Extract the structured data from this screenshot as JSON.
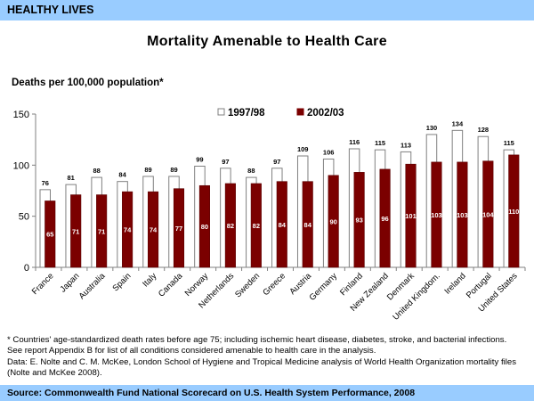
{
  "header": {
    "section": "HEALTHY LIVES"
  },
  "footer": {
    "source": "Source: Commonwealth Fund National Scorecard on U.S. Health System Performance, 2008"
  },
  "notes": [
    "* Countries' age-standardized death rates before age 75; including ischemic heart disease, diabetes, stroke, and bacterial infections.",
    "See report Appendix B for list of all conditions considered amenable to health care in the analysis.",
    "Data: E. Nolte and C. M. McKee, London School of Hygiene and Tropical Medicine analysis of World Health Organization mortality files (Nolte and McKee 2008)."
  ],
  "chart_data": {
    "type": "bar",
    "title": "Mortality Amenable to Health Care",
    "xlabel": "",
    "ylabel": "Deaths per 100,000 population*",
    "ylim": [
      0,
      150
    ],
    "yticks": [
      0,
      50,
      100,
      150
    ],
    "grid": false,
    "legend": "top-center",
    "categories": [
      "France",
      "Japan",
      "Australia",
      "Spain",
      "Italy",
      "Canada",
      "Norway",
      "Netherlands",
      "Sweden",
      "Greece",
      "Austria",
      "Germany",
      "Finland",
      "New Zealand",
      "Denmark",
      "United Kingdom",
      "Ireland",
      "Portugal",
      "United States"
    ],
    "series": [
      {
        "name": "1997/98",
        "color": "#ffffff",
        "stroke": "#808080",
        "values": [
          76,
          81,
          88,
          84,
          89,
          89,
          99,
          97,
          88,
          97,
          109,
          106,
          116,
          115,
          113,
          130,
          134,
          128,
          115
        ]
      },
      {
        "name": "2002/03",
        "color": "#7b0000",
        "stroke": "#7b0000",
        "values": [
          65,
          71,
          71,
          74,
          74,
          77,
          80,
          82,
          82,
          84,
          84,
          90,
          93,
          96,
          101,
          103,
          103,
          104,
          110
        ]
      }
    ]
  }
}
